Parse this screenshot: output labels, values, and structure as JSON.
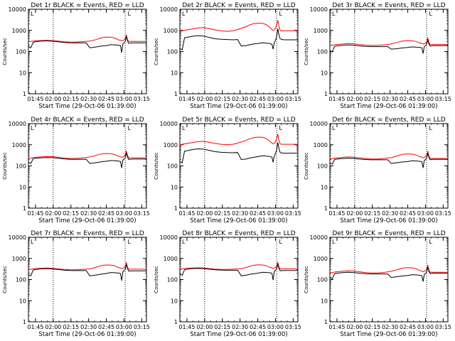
{
  "colors": {
    "events": "#000000",
    "lld": "#ff0000",
    "axis": "#000000",
    "background": "#ffffff"
  },
  "shared": {
    "xlabel": "Start Time (29-Oct-06 01:39:00)",
    "ylabel": "Counts/sec",
    "x_tick_labels": [
      "01:45",
      "02:00",
      "02:15",
      "02:30",
      "02:45",
      "03:00",
      "03:15"
    ],
    "x_tick_minutes": [
      6,
      21,
      36,
      51,
      66,
      81,
      96
    ],
    "xlim_minutes": [
      0,
      100
    ],
    "y_tick_labels": [
      "1",
      "10",
      "100",
      "1000",
      "10000"
    ],
    "y_tick_values": [
      1,
      10,
      100,
      1000,
      10000
    ],
    "ylim": [
      1,
      10000
    ],
    "y_scale": "log",
    "dotted_lines_minutes": [
      21,
      82
    ],
    "marker_minute": 84,
    "marker_label": "L"
  },
  "chart_data": [
    {
      "type": "line",
      "title": "Det 1r BLACK = Events, RED = LLD",
      "x": [
        0,
        2,
        4,
        6,
        10,
        15,
        20,
        25,
        30,
        35,
        40,
        45,
        49,
        52,
        56,
        58,
        60,
        63,
        66,
        70,
        73,
        76,
        78,
        79,
        80,
        81,
        82,
        83,
        84,
        85,
        86,
        88,
        92,
        96,
        100
      ],
      "series": [
        {
          "name": "Events",
          "values": [
            170,
            150,
            270,
            290,
            310,
            320,
            310,
            290,
            270,
            260,
            255,
            255,
            255,
            150,
            160,
            165,
            175,
            185,
            190,
            210,
            205,
            200,
            190,
            90,
            230,
            260,
            300,
            500,
            320,
            240,
            250,
            255,
            255,
            255,
            255
          ]
        },
        {
          "name": "LLD",
          "values": [
            300,
            300,
            310,
            320,
            330,
            340,
            330,
            310,
            290,
            280,
            280,
            290,
            300,
            310,
            350,
            380,
            420,
            460,
            480,
            470,
            440,
            360,
            340,
            320,
            330,
            350,
            400,
            600,
            360,
            300,
            300,
            300,
            300,
            300,
            300
          ]
        }
      ]
    },
    {
      "type": "line",
      "title": "Det 2r BLACK = Events, RED = LLD",
      "x": [
        0,
        2,
        4,
        6,
        10,
        15,
        20,
        25,
        30,
        35,
        40,
        45,
        49,
        52,
        56,
        58,
        60,
        63,
        66,
        70,
        73,
        76,
        78,
        79,
        80,
        81,
        82,
        83,
        84,
        85,
        86,
        88,
        92,
        96,
        100
      ],
      "series": [
        {
          "name": "Events",
          "values": [
            140,
            120,
            450,
            470,
            520,
            560,
            540,
            460,
            400,
            380,
            370,
            360,
            370,
            180,
            190,
            200,
            215,
            230,
            240,
            260,
            250,
            240,
            220,
            130,
            260,
            340,
            500,
            1200,
            600,
            400,
            380,
            360,
            360,
            360,
            360
          ]
        },
        {
          "name": "LLD",
          "values": [
            900,
            950,
            1000,
            1050,
            1150,
            1300,
            1350,
            1200,
            1050,
            950,
            900,
            950,
            1100,
            1250,
            1500,
            1700,
            1900,
            2100,
            2200,
            2150,
            1900,
            1400,
            1100,
            1000,
            1050,
            1300,
            1800,
            3000,
            1500,
            1000,
            950,
            950,
            950,
            950,
            950
          ]
        }
      ]
    },
    {
      "type": "line",
      "title": "Det 3r BLACK = Events, RED = LLD",
      "x": [
        0,
        2,
        4,
        6,
        10,
        15,
        20,
        25,
        30,
        35,
        40,
        45,
        49,
        52,
        56,
        58,
        60,
        63,
        66,
        70,
        73,
        76,
        78,
        79,
        80,
        81,
        82,
        83,
        84,
        85,
        86,
        88,
        92,
        96,
        100
      ],
      "series": [
        {
          "name": "Events",
          "values": [
            110,
            95,
            175,
            185,
            195,
            205,
            200,
            185,
            175,
            170,
            170,
            170,
            170,
            130,
            135,
            140,
            145,
            150,
            155,
            165,
            160,
            158,
            150,
            80,
            170,
            190,
            220,
            350,
            220,
            180,
            185,
            190,
            190,
            190,
            190
          ]
        },
        {
          "name": "LLD",
          "values": [
            200,
            200,
            210,
            215,
            225,
            240,
            235,
            215,
            200,
            195,
            195,
            205,
            215,
            230,
            260,
            280,
            300,
            320,
            330,
            320,
            300,
            255,
            240,
            225,
            235,
            250,
            290,
            430,
            260,
            215,
            215,
            215,
            215,
            215,
            215
          ]
        }
      ]
    },
    {
      "type": "line",
      "title": "Det 4r BLACK = Events, RED = LLD",
      "x": [
        0,
        2,
        4,
        6,
        10,
        15,
        20,
        25,
        30,
        35,
        40,
        45,
        49,
        52,
        56,
        58,
        60,
        63,
        66,
        70,
        73,
        76,
        78,
        79,
        80,
        81,
        82,
        83,
        84,
        85,
        86,
        88,
        92,
        96,
        100
      ],
      "series": [
        {
          "name": "Events",
          "values": [
            150,
            130,
            220,
            230,
            240,
            250,
            245,
            230,
            215,
            205,
            205,
            205,
            205,
            130,
            140,
            145,
            150,
            160,
            165,
            180,
            175,
            170,
            160,
            80,
            190,
            210,
            240,
            420,
            260,
            200,
            205,
            210,
            210,
            210,
            210
          ]
        },
        {
          "name": "LLD",
          "values": [
            230,
            235,
            245,
            255,
            265,
            280,
            275,
            255,
            235,
            225,
            225,
            235,
            250,
            265,
            300,
            325,
            350,
            375,
            385,
            375,
            345,
            290,
            270,
            255,
            265,
            285,
            330,
            500,
            300,
            240,
            240,
            240,
            240,
            240,
            240
          ]
        }
      ]
    },
    {
      "type": "line",
      "title": "Det 5r BLACK = Events, RED = LLD",
      "x": [
        0,
        2,
        4,
        6,
        10,
        15,
        20,
        25,
        30,
        35,
        40,
        45,
        49,
        52,
        56,
        58,
        60,
        63,
        66,
        70,
        73,
        76,
        78,
        79,
        80,
        81,
        82,
        83,
        84,
        85,
        86,
        88,
        92,
        96,
        100
      ],
      "series": [
        {
          "name": "Events",
          "values": [
            160,
            140,
            500,
            520,
            580,
            640,
            620,
            540,
            470,
            440,
            430,
            420,
            430,
            200,
            210,
            225,
            240,
            260,
            275,
            300,
            290,
            280,
            260,
            150,
            300,
            380,
            560,
            1300,
            650,
            430,
            410,
            400,
            400,
            400,
            400
          ]
        },
        {
          "name": "LLD",
          "values": [
            1000,
            1050,
            1100,
            1150,
            1250,
            1400,
            1450,
            1300,
            1150,
            1050,
            1000,
            1050,
            1200,
            1350,
            1600,
            1800,
            2000,
            2200,
            2300,
            2250,
            2000,
            1500,
            1200,
            1100,
            1150,
            1400,
            1900,
            3200,
            1600,
            1100,
            1050,
            1050,
            1050,
            1050,
            1050
          ]
        }
      ]
    },
    {
      "type": "line",
      "title": "Det 6r BLACK = Events, RED = LLD",
      "x": [
        0,
        2,
        4,
        6,
        10,
        15,
        20,
        25,
        30,
        35,
        40,
        45,
        49,
        52,
        56,
        58,
        60,
        63,
        66,
        70,
        73,
        76,
        78,
        79,
        80,
        81,
        82,
        83,
        84,
        85,
        86,
        88,
        92,
        96,
        100
      ],
      "series": [
        {
          "name": "Events",
          "values": [
            140,
            120,
            200,
            210,
            220,
            230,
            225,
            210,
            200,
            195,
            195,
            195,
            195,
            130,
            140,
            145,
            150,
            155,
            160,
            175,
            170,
            165,
            155,
            80,
            180,
            200,
            230,
            400,
            250,
            195,
            200,
            205,
            205,
            205,
            205
          ]
        },
        {
          "name": "LLD",
          "values": [
            215,
            220,
            230,
            240,
            250,
            265,
            260,
            240,
            220,
            210,
            210,
            220,
            235,
            250,
            285,
            310,
            335,
            360,
            370,
            360,
            330,
            275,
            255,
            240,
            250,
            270,
            315,
            480,
            285,
            225,
            225,
            225,
            225,
            225,
            225
          ]
        }
      ]
    },
    {
      "type": "line",
      "title": "Det 7r BLACK = Events, RED = LLD",
      "x": [
        0,
        2,
        4,
        6,
        10,
        15,
        20,
        25,
        30,
        35,
        40,
        45,
        49,
        52,
        56,
        58,
        60,
        63,
        66,
        70,
        73,
        76,
        78,
        79,
        80,
        81,
        82,
        83,
        84,
        85,
        86,
        88,
        92,
        96,
        100
      ],
      "series": [
        {
          "name": "Events",
          "values": [
            170,
            150,
            280,
            300,
            320,
            330,
            320,
            300,
            280,
            270,
            265,
            265,
            265,
            150,
            160,
            165,
            175,
            185,
            195,
            215,
            210,
            205,
            195,
            90,
            235,
            265,
            310,
            520,
            330,
            250,
            255,
            260,
            260,
            260,
            260
          ]
        },
        {
          "name": "LLD",
          "values": [
            310,
            310,
            320,
            330,
            340,
            350,
            340,
            320,
            300,
            290,
            290,
            300,
            310,
            320,
            360,
            390,
            430,
            470,
            490,
            480,
            450,
            370,
            350,
            330,
            340,
            360,
            410,
            620,
            370,
            310,
            310,
            310,
            310,
            310,
            310
          ]
        }
      ]
    },
    {
      "type": "line",
      "title": "Det 8r BLACK = Events, RED = LLD",
      "x": [
        0,
        2,
        4,
        6,
        10,
        15,
        20,
        25,
        30,
        35,
        40,
        45,
        49,
        52,
        56,
        58,
        60,
        63,
        66,
        70,
        73,
        76,
        78,
        79,
        80,
        81,
        82,
        83,
        84,
        85,
        86,
        88,
        92,
        96,
        100
      ],
      "series": [
        {
          "name": "Events",
          "values": [
            180,
            160,
            290,
            310,
            330,
            340,
            330,
            310,
            290,
            280,
            275,
            275,
            275,
            150,
            160,
            170,
            180,
            190,
            200,
            220,
            215,
            210,
            200,
            95,
            245,
            275,
            320,
            540,
            340,
            260,
            265,
            270,
            270,
            270,
            270
          ]
        },
        {
          "name": "LLD",
          "values": [
            320,
            320,
            330,
            340,
            350,
            360,
            350,
            330,
            310,
            300,
            300,
            310,
            320,
            330,
            370,
            400,
            440,
            480,
            500,
            490,
            460,
            380,
            360,
            340,
            350,
            370,
            420,
            640,
            380,
            320,
            320,
            320,
            320,
            320,
            320
          ]
        }
      ]
    },
    {
      "type": "line",
      "title": "Det 9r BLACK = Events, RED = LLD",
      "x": [
        0,
        2,
        4,
        6,
        10,
        15,
        20,
        25,
        30,
        35,
        40,
        45,
        49,
        52,
        56,
        58,
        60,
        63,
        66,
        70,
        73,
        76,
        78,
        79,
        80,
        81,
        82,
        83,
        84,
        85,
        86,
        88,
        92,
        96,
        100
      ],
      "series": [
        {
          "name": "Events",
          "values": [
            130,
            110,
            190,
            200,
            210,
            220,
            215,
            200,
            190,
            185,
            185,
            185,
            185,
            125,
            135,
            140,
            145,
            150,
            155,
            170,
            165,
            160,
            150,
            80,
            175,
            195,
            225,
            380,
            235,
            190,
            195,
            200,
            200,
            200,
            200
          ]
        },
        {
          "name": "LLD",
          "values": [
            210,
            215,
            225,
            235,
            245,
            260,
            255,
            235,
            215,
            205,
            205,
            215,
            230,
            245,
            280,
            305,
            330,
            355,
            365,
            355,
            325,
            270,
            250,
            235,
            245,
            265,
            310,
            470,
            280,
            220,
            220,
            220,
            220,
            220,
            220
          ]
        }
      ]
    }
  ]
}
